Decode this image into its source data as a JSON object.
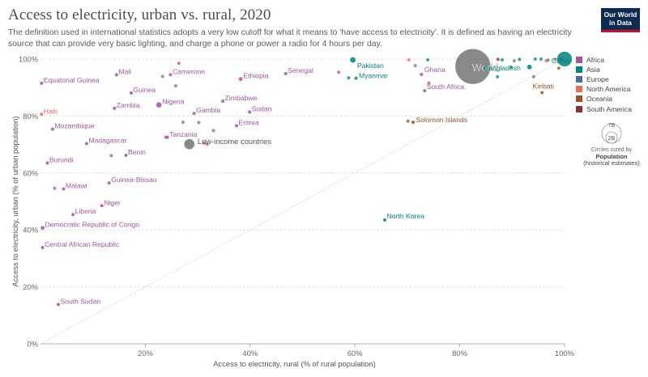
{
  "header": {
    "title": "Access to electricity, urban vs. rural, 2020",
    "subtitle": "The definition used in international statistics adopts a very low cutoff for what it means to 'have access to electricity'. It is defined as having an electricity source that can provide very basic lighting, and charge a phone or power a radio for 4 hours per day.",
    "logo_line1": "Our World",
    "logo_line2": "in Data"
  },
  "legend": {
    "items": [
      {
        "label": "Africa",
        "color": "#a2559c"
      },
      {
        "label": "Asia",
        "color": "#00847e"
      },
      {
        "label": "Europe",
        "color": "#4c6a9c"
      },
      {
        "label": "North America",
        "color": "#e56e5a"
      },
      {
        "label": "Oceania",
        "color": "#9a5129"
      },
      {
        "label": "South America",
        "color": "#883039"
      }
    ],
    "size_big": "7B",
    "size_small": "2B",
    "size_caption": "Circles sized by",
    "size_caption_bold": "Population",
    "size_caption_2": "(historical estimates)"
  },
  "colors": {
    "Africa": "#a2559c",
    "Asia": "#00847e",
    "Europe": "#4c6a9c",
    "North America": "#e56e5a",
    "Oceania": "#9a5129",
    "South America": "#883039",
    "World": "#6b6b6b"
  },
  "chart_data": {
    "type": "scatter",
    "title": "Access to electricity, urban vs. rural, 2020",
    "xlabel": "Access to electricity, rural (% of rural population)",
    "ylabel": "Access to electricity, urban (% of urban population)",
    "xlim": [
      0,
      100
    ],
    "ylim": [
      0,
      100
    ],
    "x_ticks": [
      "20%",
      "40%",
      "60%",
      "80%",
      "100%"
    ],
    "y_ticks": [
      "0%",
      "20%",
      "40%",
      "60%",
      "80%",
      "100%"
    ],
    "diagonal_line": true,
    "grid": "horizontal",
    "legend_placement": "right",
    "points": [
      {
        "label": "World",
        "x": 82.5,
        "y": 97.4,
        "group": "World",
        "pop": 7800
      },
      {
        "label": "Low-income countries",
        "x": 28.4,
        "y": 70.1,
        "group": "World",
        "pop": 700
      },
      {
        "label": "Equatorial Guinea",
        "x": 0.2,
        "y": 91.5,
        "group": "Africa",
        "pop": 1.4
      },
      {
        "label": "Mali",
        "x": 14.5,
        "y": 94.5,
        "group": "Africa",
        "pop": 21
      },
      {
        "label": "Cameroon",
        "x": 24.8,
        "y": 94.5,
        "group": "Africa",
        "pop": 27
      },
      {
        "label": "Ethiopia",
        "x": 38.2,
        "y": 93.0,
        "group": "Africa",
        "pop": 118
      },
      {
        "label": "Senegal",
        "x": 46.8,
        "y": 94.9,
        "group": "Africa",
        "pop": 17
      },
      {
        "label": "Guinea",
        "x": 17.3,
        "y": 88.1,
        "group": "Africa",
        "pop": 13
      },
      {
        "label": "Nigeria",
        "x": 22.6,
        "y": 83.9,
        "group": "Africa",
        "pop": 210
      },
      {
        "label": "Zambia",
        "x": 14.1,
        "y": 82.7,
        "group": "Africa",
        "pop": 19
      },
      {
        "label": "Zimbabwe",
        "x": 34.8,
        "y": 85.2,
        "group": "Africa",
        "pop": 15
      },
      {
        "label": "Sudan",
        "x": 39.9,
        "y": 81.4,
        "group": "Africa",
        "pop": 44
      },
      {
        "label": "Gambia",
        "x": 29.3,
        "y": 80.9,
        "group": "Africa",
        "pop": 2.6
      },
      {
        "label": "Eritrea",
        "x": 37.4,
        "y": 76.6,
        "group": "Africa",
        "pop": 3.6
      },
      {
        "label": "Mozambique",
        "x": 2.3,
        "y": 75.4,
        "group": "Africa",
        "pop": 32
      },
      {
        "label": "Tanzania",
        "x": 24.2,
        "y": 72.5,
        "group": "Africa",
        "pop": 61
      },
      {
        "label": "Madagascar",
        "x": 8.8,
        "y": 70.3,
        "group": "Africa",
        "pop": 28
      },
      {
        "label": "Benin",
        "x": 16.3,
        "y": 66.2,
        "group": "Africa",
        "pop": 12
      },
      {
        "label": "Burundi",
        "x": 1.3,
        "y": 63.5,
        "group": "Africa",
        "pop": 12
      },
      {
        "label": "Guinea-Bissau",
        "x": 13.1,
        "y": 56.5,
        "group": "Africa",
        "pop": 2
      },
      {
        "label": "Malawi",
        "x": 4.4,
        "y": 54.4,
        "group": "Africa",
        "pop": 19
      },
      {
        "label": "Niger",
        "x": 11.7,
        "y": 48.5,
        "group": "Africa",
        "pop": 24
      },
      {
        "label": "Liberia",
        "x": 6.2,
        "y": 45.4,
        "group": "Africa",
        "pop": 5
      },
      {
        "label": "Democratic Republic of Congo",
        "x": 0.4,
        "y": 40.7,
        "group": "Africa",
        "pop": 92
      },
      {
        "label": "Central African Republic",
        "x": 0.4,
        "y": 33.8,
        "group": "Africa",
        "pop": 4.8
      },
      {
        "label": "South Sudan",
        "x": 3.4,
        "y": 13.8,
        "group": "Africa",
        "pop": 11
      },
      {
        "label": "Ghana",
        "x": 72.7,
        "y": 94.6,
        "group": "Africa",
        "pop": 31
      },
      {
        "label": "South Africa",
        "x": 73.3,
        "y": 88.9,
        "group": "Africa",
        "pop": 59
      },
      {
        "label": "Pakistan",
        "x": 59.6,
        "y": 99.7,
        "group": "Asia",
        "pop": 227
      },
      {
        "label": "Myanmar",
        "x": 60.2,
        "y": 93.3,
        "group": "Asia",
        "pop": 54
      },
      {
        "label": "Bangladesh",
        "x": 93.3,
        "y": 97.2,
        "group": "Asia",
        "pop": 167
      },
      {
        "label": "China",
        "x": 100,
        "y": 100,
        "group": "Asia",
        "pop": 1424
      },
      {
        "label": "North Korea",
        "x": 65.7,
        "y": 43.5,
        "group": "Asia",
        "pop": 26
      },
      {
        "label": "Haiti",
        "x": 0.2,
        "y": 80.6,
        "group": "North America",
        "pop": 11
      },
      {
        "label": "Kiribati",
        "x": 95.7,
        "y": 88.2,
        "group": "Oceania",
        "pop": 0.12
      },
      {
        "label": "Solomon Islands",
        "x": 71.1,
        "y": 77.8,
        "group": "Oceania",
        "pop": 0.7
      }
    ],
    "unlabeled_points": [
      {
        "x": 26.4,
        "y": 98.5,
        "group": "Africa"
      },
      {
        "x": 23.3,
        "y": 93.9,
        "group": "Africa"
      },
      {
        "x": 25.8,
        "y": 90.6,
        "group": "Africa"
      },
      {
        "x": 27.2,
        "y": 77.8,
        "group": "Africa"
      },
      {
        "x": 30.2,
        "y": 77.7,
        "group": "Africa"
      },
      {
        "x": 31.8,
        "y": 70.1,
        "group": "Africa"
      },
      {
        "x": 31.2,
        "y": 70.5,
        "group": "Africa"
      },
      {
        "x": 33.0,
        "y": 74.9,
        "group": "Africa"
      },
      {
        "x": 13.5,
        "y": 66.1,
        "group": "Africa"
      },
      {
        "x": 2.7,
        "y": 54.6,
        "group": "Africa"
      },
      {
        "x": 23.9,
        "y": 72.6,
        "group": "Africa"
      },
      {
        "x": 56.9,
        "y": 95.4,
        "group": "Africa"
      },
      {
        "x": 74.1,
        "y": 91.6,
        "group": "Africa"
      },
      {
        "x": 71.5,
        "y": 97.7,
        "group": "Africa"
      },
      {
        "x": 90.4,
        "y": 99.4,
        "group": "Africa"
      },
      {
        "x": 98.2,
        "y": 99.9,
        "group": "Africa"
      },
      {
        "x": 94.1,
        "y": 93.8,
        "group": "Africa"
      },
      {
        "x": 58.8,
        "y": 93.4,
        "group": "Asia"
      },
      {
        "x": 73.9,
        "y": 99.7,
        "group": "Asia"
      },
      {
        "x": 88.1,
        "y": 99.7,
        "group": "Asia"
      },
      {
        "x": 91.4,
        "y": 99.9,
        "group": "Asia"
      },
      {
        "x": 87.2,
        "y": 93.8,
        "group": "Asia"
      },
      {
        "x": 94.4,
        "y": 100,
        "group": "Asia"
      },
      {
        "x": 96.8,
        "y": 99.6,
        "group": "Asia"
      },
      {
        "x": 99.3,
        "y": 99.9,
        "group": "Asia"
      },
      {
        "x": 95.5,
        "y": 100,
        "group": "Asia"
      },
      {
        "x": 89.8,
        "y": 97.2,
        "group": "Asia"
      },
      {
        "x": 70.3,
        "y": 99.7,
        "group": "North America"
      },
      {
        "x": 96.5,
        "y": 99.4,
        "group": "North America"
      },
      {
        "x": 87.3,
        "y": 99.9,
        "group": "South America"
      },
      {
        "x": 70.1,
        "y": 78.2,
        "group": "Oceania"
      },
      {
        "x": 98.9,
        "y": 96.8,
        "group": "Oceania"
      }
    ]
  }
}
